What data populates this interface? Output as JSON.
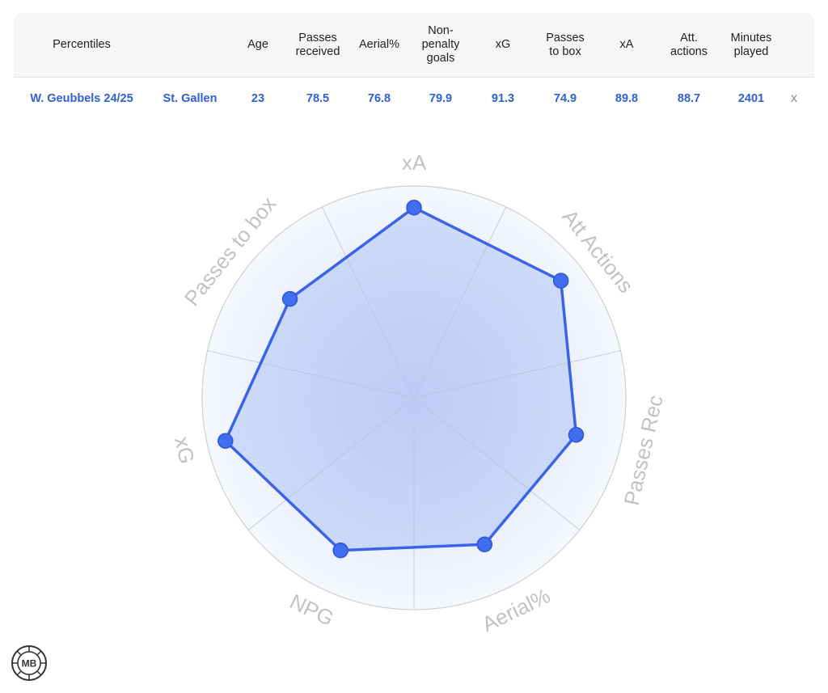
{
  "table": {
    "headers": [
      "Percentiles",
      "Age",
      "Passes\nreceived",
      "Aerial%",
      "Non-\npenalty\ngoals",
      "xG",
      "Passes\nto box",
      "xA",
      "Att.\nactions",
      "Minutes\nplayed"
    ],
    "row": {
      "player": "W. Geubbels 24/25",
      "team": "St. Gallen",
      "age": "23",
      "passes_received": "78.5",
      "aerial": "76.8",
      "npg": "79.9",
      "xg": "91.3",
      "passes_to_box": "74.9",
      "xa": "89.8",
      "att_actions": "88.7",
      "minutes": "2401",
      "remove": "x"
    }
  },
  "chart_data": {
    "type": "radar",
    "axes": [
      "xA",
      "Att Actions",
      "Passes Rec",
      "Aerial%",
      "NPG",
      "xG",
      "Passes to box"
    ],
    "range": [
      0,
      100
    ],
    "series": [
      {
        "values": [
          89.8,
          88.7,
          78.5,
          76.8,
          79.9,
          91.3,
          74.9
        ]
      }
    ],
    "colors": {
      "line": "#3a63e8",
      "fill": "#a9c0f5",
      "marker": "#3f6ff0",
      "label": "#c2c2c2"
    }
  },
  "logo": {
    "text": "MB",
    "icon": "mb-badge-icon"
  }
}
